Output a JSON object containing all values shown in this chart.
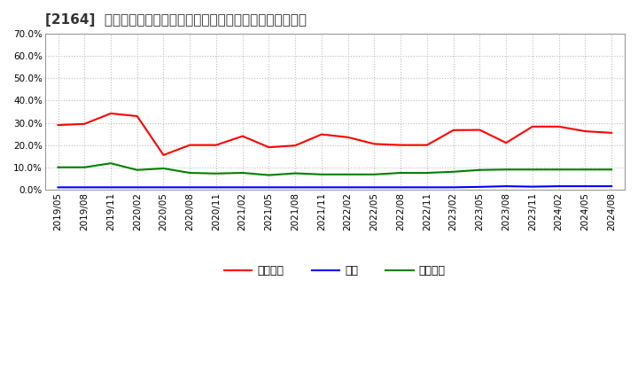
{
  "title": "[2164]  売上債権、在庫、買入債務の総資産に対する比率の推移",
  "x_labels": [
    "2019/05",
    "2019/08",
    "2019/11",
    "2020/02",
    "2020/05",
    "2020/08",
    "2020/11",
    "2021/02",
    "2021/05",
    "2021/08",
    "2021/11",
    "2022/02",
    "2022/05",
    "2022/08",
    "2022/11",
    "2023/02",
    "2023/05",
    "2023/08",
    "2023/11",
    "2024/02",
    "2024/05",
    "2024/08"
  ],
  "urikake": [
    0.29,
    0.295,
    0.342,
    0.33,
    0.155,
    0.2,
    0.2,
    0.24,
    0.19,
    0.198,
    0.248,
    0.235,
    0.205,
    0.2,
    0.2,
    0.267,
    0.268,
    0.21,
    0.283,
    0.283,
    0.262,
    0.255
  ],
  "zaiko": [
    0.01,
    0.01,
    0.01,
    0.01,
    0.01,
    0.01,
    0.01,
    0.01,
    0.01,
    0.01,
    0.01,
    0.01,
    0.01,
    0.01,
    0.01,
    0.01,
    0.012,
    0.015,
    0.013,
    0.015,
    0.015,
    0.015
  ],
  "kaiire": [
    0.1,
    0.1,
    0.118,
    0.088,
    0.095,
    0.075,
    0.072,
    0.075,
    0.065,
    0.073,
    0.068,
    0.068,
    0.068,
    0.075,
    0.075,
    0.08,
    0.088,
    0.09,
    0.09,
    0.09,
    0.09,
    0.09
  ],
  "urikake_color": "#ff0000",
  "zaiko_color": "#0000ff",
  "kaiire_color": "#008000",
  "legend_urikake": "売上債権",
  "legend_zaiko": "在庫",
  "legend_kaiire": "買入債務",
  "ylim": [
    0.0,
    0.7
  ],
  "yticks": [
    0.0,
    0.1,
    0.2,
    0.3,
    0.4,
    0.5,
    0.6,
    0.7
  ],
  "background_color": "#ffffff",
  "plot_bg_color": "#ffffff",
  "grid_color": "#aaaaaa",
  "title_fontsize": 11,
  "tick_fontsize": 7.5,
  "legend_fontsize": 9
}
